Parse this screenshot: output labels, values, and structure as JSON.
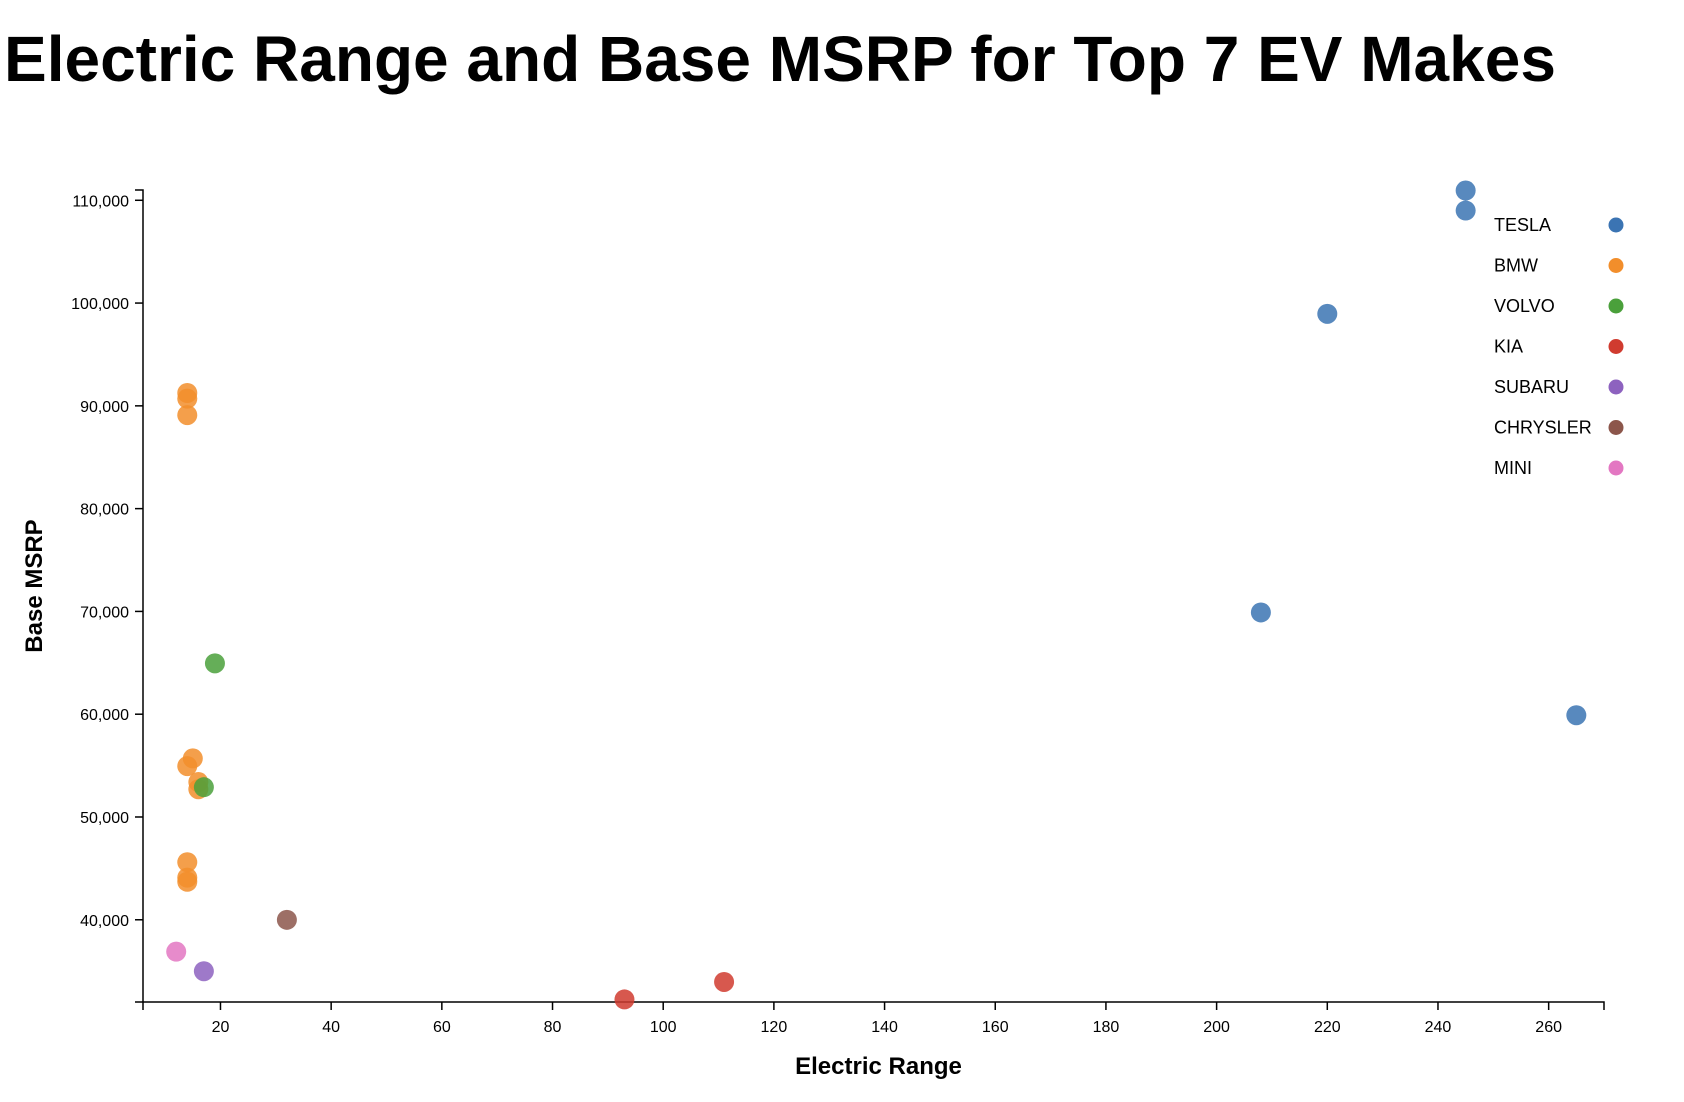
{
  "chart_data": {
    "type": "scatter",
    "title": "Electric Range and Base MSRP for Top 7 EV Makes",
    "xlabel": "Electric Range",
    "ylabel": "Base MSRP",
    "xlim": [
      6,
      270
    ],
    "ylim": [
      32000,
      111000
    ],
    "x_ticks": [
      20,
      40,
      60,
      80,
      100,
      120,
      140,
      160,
      180,
      200,
      220,
      240,
      260
    ],
    "y_ticks": [
      40000,
      50000,
      60000,
      70000,
      80000,
      90000,
      100000,
      110000
    ],
    "grid": false,
    "legend_position": "top-right",
    "series": [
      {
        "name": "TESLA",
        "color": "#3b74b3",
        "points": [
          {
            "x": 245,
            "y": 110950
          },
          {
            "x": 245,
            "y": 109000
          },
          {
            "x": 220,
            "y": 98950
          },
          {
            "x": 208,
            "y": 69900
          },
          {
            "x": 265,
            "y": 59900
          }
        ]
      },
      {
        "name": "BMW",
        "color": "#f28e2b",
        "points": [
          {
            "x": 14,
            "y": 91250
          },
          {
            "x": 14,
            "y": 90700
          },
          {
            "x": 14,
            "y": 89100
          },
          {
            "x": 15,
            "y": 55700
          },
          {
            "x": 14,
            "y": 54950
          },
          {
            "x": 16,
            "y": 53400
          },
          {
            "x": 16,
            "y": 52700
          },
          {
            "x": 14,
            "y": 45600
          },
          {
            "x": 14,
            "y": 44100
          },
          {
            "x": 14,
            "y": 43700
          }
        ]
      },
      {
        "name": "VOLVO",
        "color": "#4aa03b",
        "points": [
          {
            "x": 19,
            "y": 64950
          },
          {
            "x": 17,
            "y": 52900
          }
        ]
      },
      {
        "name": "KIA",
        "color": "#d03b2f",
        "points": [
          {
            "x": 93,
            "y": 32250
          },
          {
            "x": 111,
            "y": 33950
          }
        ]
      },
      {
        "name": "SUBARU",
        "color": "#8d62bf",
        "points": [
          {
            "x": 17,
            "y": 34995
          }
        ]
      },
      {
        "name": "CHRYSLER",
        "color": "#8c564b",
        "points": [
          {
            "x": 32,
            "y": 39995
          }
        ]
      },
      {
        "name": "MINI",
        "color": "#e377c2",
        "points": [
          {
            "x": 12,
            "y": 36900
          }
        ]
      }
    ]
  }
}
